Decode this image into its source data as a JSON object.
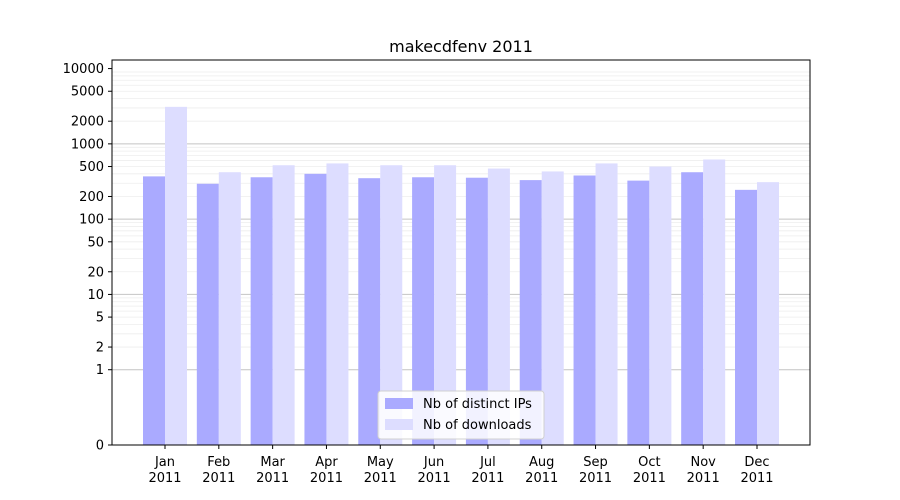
{
  "chart_data": {
    "type": "bar",
    "title": "makecdfenv 2011",
    "xlabel": "",
    "ylabel": "",
    "yscale": "symlog",
    "ylim": [
      0,
      13000
    ],
    "yticks": [
      0,
      1,
      2,
      5,
      10,
      20,
      50,
      100,
      200,
      500,
      1000,
      2000,
      5000,
      10000
    ],
    "grid": "horizontal",
    "legend_position": "bottom-center",
    "categories": [
      "Jan\n2011",
      "Feb\n2011",
      "Mar\n2011",
      "Apr\n2011",
      "May\n2011",
      "Jun\n2011",
      "Jul\n2011",
      "Aug\n2011",
      "Sep\n2011",
      "Oct\n2011",
      "Nov\n2011",
      "Dec\n2011"
    ],
    "series": [
      {
        "name": "Nb of distinct IPs",
        "color": "#aaaaff",
        "values": [
          370,
          295,
          360,
          400,
          350,
          360,
          355,
          330,
          380,
          325,
          420,
          245
        ]
      },
      {
        "name": "Nb of downloads",
        "color": "#ddddff",
        "values": [
          3100,
          420,
          520,
          550,
          520,
          520,
          470,
          430,
          550,
          500,
          620,
          310
        ]
      }
    ]
  }
}
